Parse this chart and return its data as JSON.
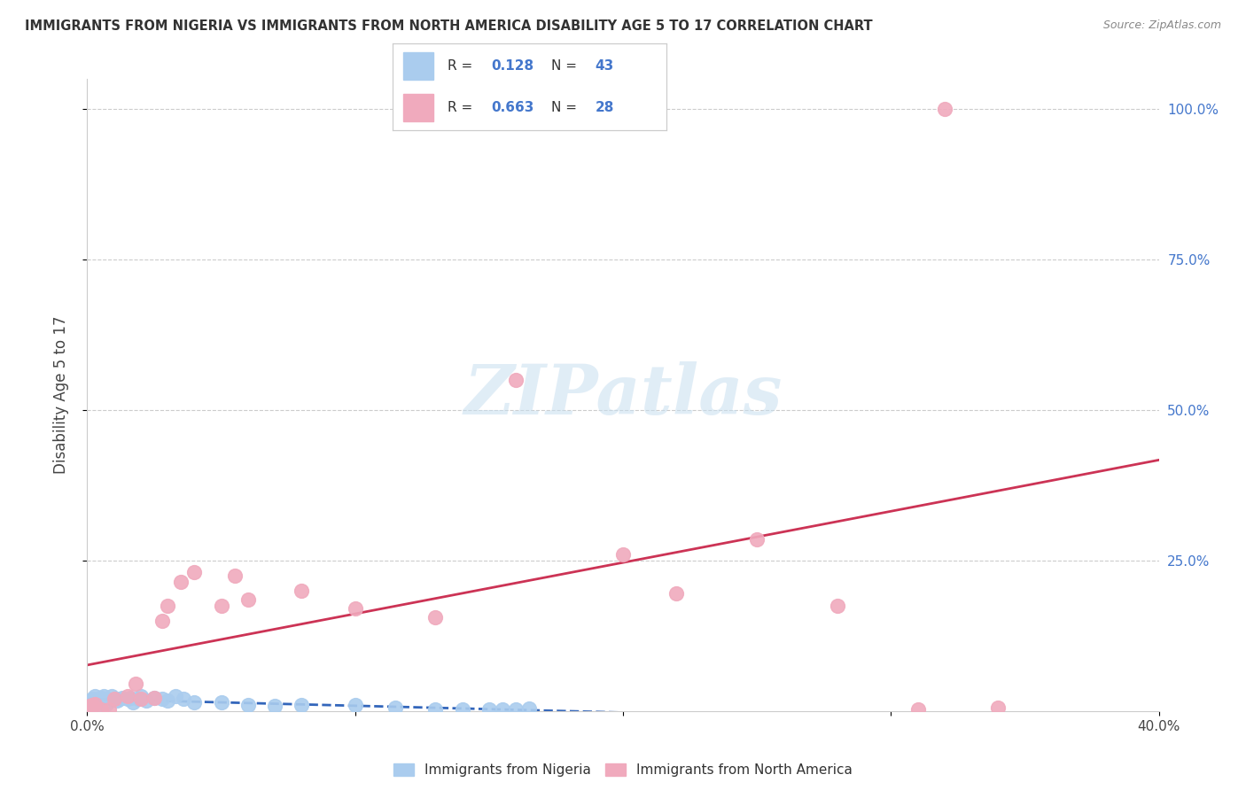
{
  "title": "IMMIGRANTS FROM NIGERIA VS IMMIGRANTS FROM NORTH AMERICA DISABILITY AGE 5 TO 17 CORRELATION CHART",
  "source": "Source: ZipAtlas.com",
  "ylabel": "Disability Age 5 to 17",
  "background_color": "#ffffff",
  "nigeria_face_color": "#aaccee",
  "north_america_face_color": "#f0aabd",
  "nigeria_line_color": "#3366bb",
  "north_america_line_color": "#cc3355",
  "right_axis_color": "#4477cc",
  "R_nigeria": "0.128",
  "N_nigeria": "43",
  "R_north_america": "0.663",
  "N_north_america": "28",
  "nigeria_x": [
    0.001,
    0.001,
    0.002,
    0.002,
    0.003,
    0.003,
    0.004,
    0.004,
    0.005,
    0.006,
    0.006,
    0.007,
    0.007,
    0.008,
    0.009,
    0.01,
    0.011,
    0.012,
    0.013,
    0.015,
    0.016,
    0.017,
    0.019,
    0.02,
    0.022,
    0.025,
    0.028,
    0.03,
    0.033,
    0.036,
    0.04,
    0.05,
    0.06,
    0.07,
    0.08,
    0.1,
    0.115,
    0.13,
    0.14,
    0.15,
    0.155,
    0.16,
    0.165
  ],
  "nigeria_y": [
    0.01,
    0.015,
    0.012,
    0.02,
    0.015,
    0.025,
    0.01,
    0.02,
    0.022,
    0.015,
    0.025,
    0.012,
    0.02,
    0.018,
    0.025,
    0.02,
    0.018,
    0.02,
    0.022,
    0.02,
    0.022,
    0.015,
    0.02,
    0.025,
    0.018,
    0.022,
    0.02,
    0.018,
    0.025,
    0.02,
    0.015,
    0.015,
    0.01,
    0.008,
    0.01,
    0.01,
    0.005,
    0.003,
    0.002,
    0.002,
    0.002,
    0.003,
    0.004
  ],
  "north_america_x": [
    0.001,
    0.002,
    0.003,
    0.005,
    0.008,
    0.01,
    0.015,
    0.018,
    0.02,
    0.025,
    0.028,
    0.03,
    0.035,
    0.04,
    0.05,
    0.055,
    0.06,
    0.08,
    0.1,
    0.13,
    0.16,
    0.2,
    0.22,
    0.25,
    0.28,
    0.31,
    0.32,
    0.34
  ],
  "north_america_y": [
    0.008,
    0.01,
    0.012,
    0.002,
    0.002,
    0.02,
    0.025,
    0.045,
    0.02,
    0.022,
    0.15,
    0.175,
    0.215,
    0.23,
    0.175,
    0.225,
    0.185,
    0.2,
    0.17,
    0.155,
    0.55,
    0.26,
    0.195,
    0.285,
    0.175,
    0.002,
    1.0,
    0.005
  ],
  "xlim": [
    0.0,
    0.4
  ],
  "ylim": [
    0.0,
    1.05
  ],
  "x_ticks": [
    0.0,
    0.1,
    0.2,
    0.3,
    0.4
  ],
  "x_tick_labels": [
    "0.0%",
    "",
    "",
    "",
    "40.0%"
  ],
  "y_ticks": [
    0.25,
    0.5,
    0.75,
    1.0
  ],
  "y_tick_labels_right": [
    "25.0%",
    "50.0%",
    "75.0%",
    "100.0%"
  ],
  "watermark_text": "ZIPatlas",
  "legend_label_nigeria": "Immigrants from Nigeria",
  "legend_label_north_america": "Immigrants from North America"
}
